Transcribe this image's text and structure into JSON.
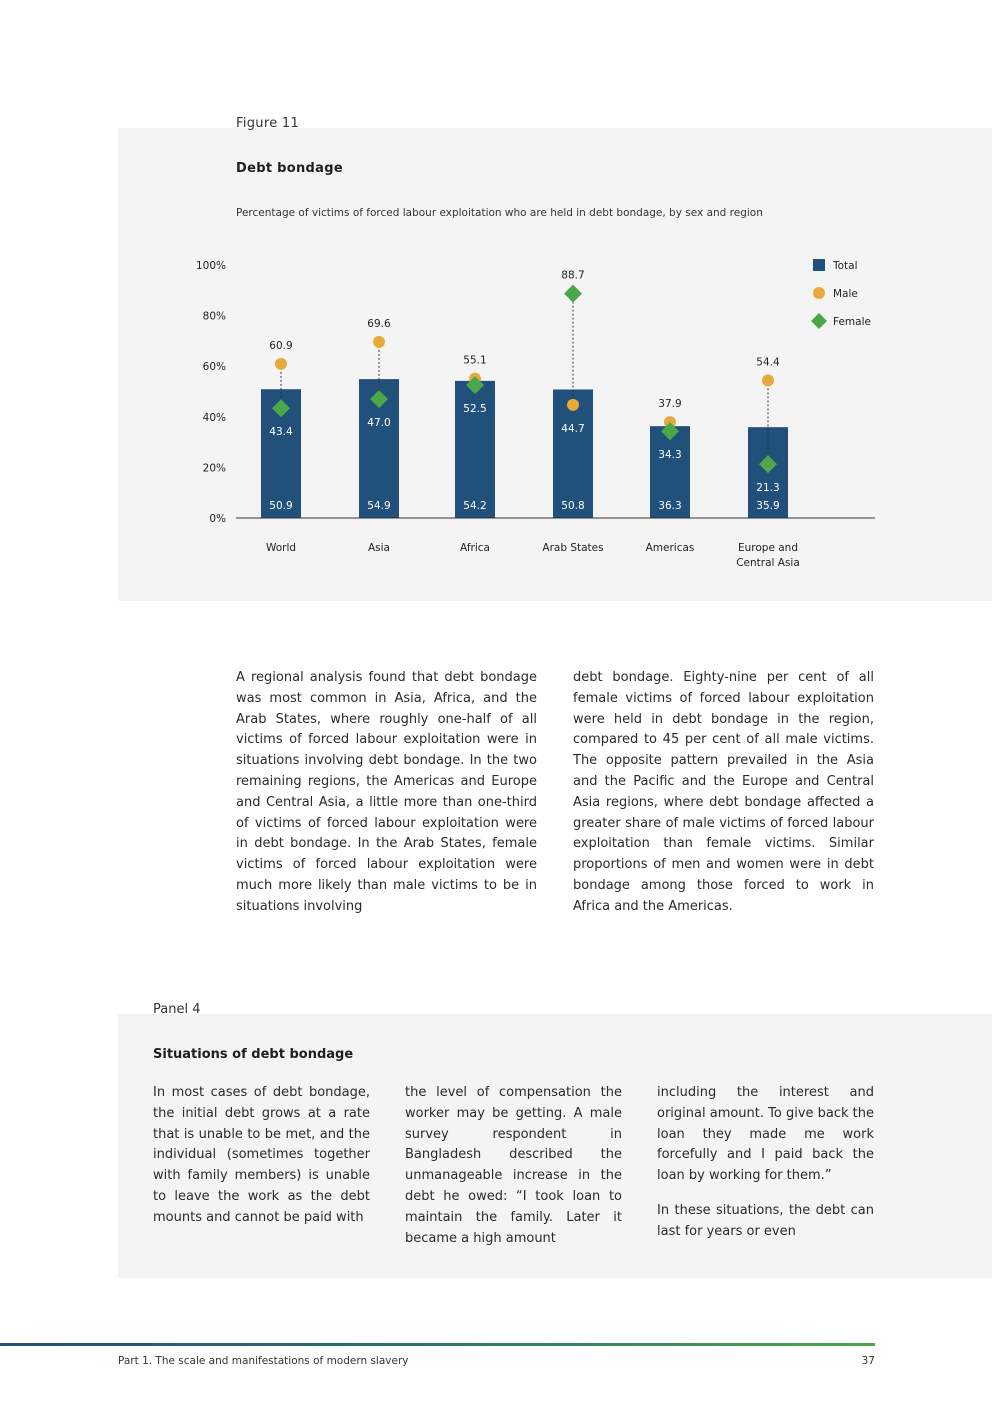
{
  "figure": {
    "label": "Figure 11",
    "title": "Debt bondage",
    "subtitle": "Percentage of victims of forced labour exploitation who are held in debt bondage, by sex and region"
  },
  "colors": {
    "total": "#21507a",
    "male": "#e6ab3a",
    "female": "#4aa84a"
  },
  "chart_data": {
    "type": "bar",
    "categories": [
      "World",
      "Asia",
      "Africa",
      "Arab States",
      "Americas",
      "Europe and Central Asia"
    ],
    "category_lines": [
      [
        "World"
      ],
      [
        "Asia"
      ],
      [
        "Africa"
      ],
      [
        "Arab States"
      ],
      [
        "Americas"
      ],
      [
        "Europe and",
        "Central Asia"
      ]
    ],
    "series": [
      {
        "name": "Total",
        "values": [
          50.9,
          54.9,
          54.2,
          50.8,
          36.3,
          35.9
        ]
      },
      {
        "name": "Male",
        "values": [
          60.9,
          69.6,
          55.1,
          44.7,
          37.9,
          54.4
        ]
      },
      {
        "name": "Female",
        "values": [
          43.4,
          47.0,
          52.5,
          88.7,
          34.3,
          21.3
        ]
      }
    ],
    "yticks": [
      "0%",
      "20%",
      "40%",
      "60%",
      "80%",
      "100%"
    ],
    "ylim": [
      0,
      100
    ],
    "legend_position": "top-right"
  },
  "body_text": {
    "col1": "A regional analysis found that debt bondage was most common in Asia, Africa, and the Arab States, where roughly one-half of all victims of forced labour exploitation were in situations involving debt bondage. In the two remaining regions, the Americas and Europe and Central Asia, a little more than one-third of victims of forced labour exploitation were in debt bondage. In the Arab States, female victims of forced labour exploitation were much more likely than male victims to be in situations involving",
    "col2": "debt bondage. Eighty-nine per cent of all female victims of forced labour exploitation were held in debt bondage in the region, compared to 45 per cent of all male victims. The opposite pattern prevailed in the Asia and the Pacific and the Europe and Central Asia regions, where debt bondage affected a greater share of male victims of forced labour exploitation than female victims. Similar proportions of men and women were in debt bondage among those forced to work in Africa and the Americas."
  },
  "panel": {
    "label": "Panel 4",
    "title": "Situations of debt bondage",
    "col1": "In most cases of debt bondage, the initial debt grows at a rate that is unable to be met, and the individual (sometimes together with family members) is unable to leave the work as the debt mounts and cannot be paid with",
    "col2": "the level of compensation the worker may be getting. A male survey respondent in Bangladesh described the unmanageable increase in the debt he owed: “I took loan to maintain the family. Later it became a high amount",
    "col3a": "including the interest and original amount. To give back the loan they made me work forcefully and I paid back the loan by working for them.”",
    "col3b": "In these situations, the debt can last for years or even"
  },
  "footer": {
    "text": "Part 1. The scale and manifestations of modern slavery",
    "page": "37"
  }
}
